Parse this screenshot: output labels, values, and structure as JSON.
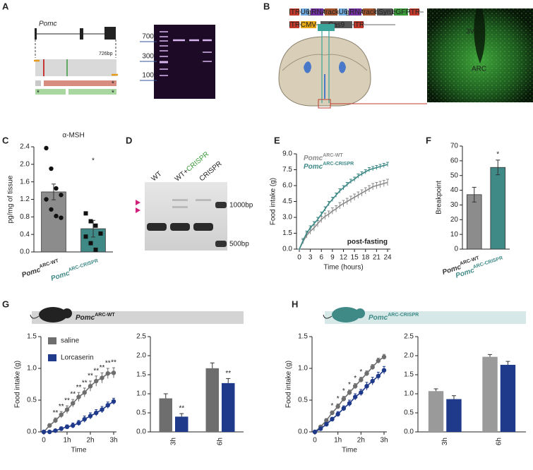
{
  "panel_A": {
    "label": "A",
    "gene": "Pomc",
    "amplicon": "726bp",
    "ladder": [
      "700",
      "300",
      "100"
    ],
    "asterisk": "*"
  },
  "panel_B": {
    "label": "B",
    "construct_1": [
      "ITR",
      "U6",
      "gRNA",
      "track",
      "U6",
      "gRNA",
      "track",
      "hSyn1",
      "eGFP",
      "ITR"
    ],
    "construct_2": [
      "ITR",
      "CMV",
      "Cas9",
      "ITR"
    ],
    "regions": [
      "3V",
      "ARC"
    ]
  },
  "panel_D": {
    "label": "D",
    "lanes": [
      [
        "WT"
      ],
      [
        "WT+",
        "CRISPR"
      ],
      [
        "CRISPR"
      ]
    ],
    "sizes": [
      "1000bp",
      "500bp"
    ]
  },
  "chart_data": [
    {
      "type": "bar",
      "panel": "C",
      "title": "α-MSH",
      "ylabel": "pg/mg of tissue",
      "categories": [
        "Pomc",
        "Pomc"
      ],
      "category_superscripts": [
        "ARC-WT",
        "ARC-CRISPR"
      ],
      "category_colors": [
        "#333333",
        "#3f8a87"
      ],
      "values": [
        1.37,
        0.53
      ],
      "errors": [
        0.18,
        0.19
      ],
      "colors": [
        "#8c8c8c",
        "#3f8a87"
      ],
      "points": [
        [
          2.37,
          1.9,
          1.45,
          1.3,
          1.2,
          0.97,
          0.82,
          0.78
        ],
        [
          0.88,
          0.7,
          0.6,
          0.42,
          0.35,
          0.2,
          0.05
        ]
      ],
      "point_markers": [
        "circle",
        "square"
      ],
      "annotation": "*",
      "annotation_color": "#3f8a87",
      "ylim": [
        0,
        2.4
      ],
      "yticks": [
        {
          "value": 0,
          "label": "0.0"
        },
        0.4,
        0.8,
        1.2,
        1.6,
        {
          "value": 2,
          "label": "2.0"
        },
        2.4
      ]
    },
    {
      "type": "line",
      "panel": "E",
      "xlabel": "Time (hours)",
      "ylabel": "Food intake (g)",
      "annotation": "post-fasting",
      "legend": "top-left",
      "x": [
        0,
        1,
        2,
        3,
        4,
        5,
        6,
        7,
        8,
        9,
        10,
        11,
        12,
        13,
        14,
        15,
        16,
        17,
        18,
        19,
        20,
        21,
        22,
        23,
        24
      ],
      "xlim": [
        0,
        24
      ],
      "xticks": [
        0,
        3,
        6,
        9,
        12,
        15,
        18,
        21,
        24
      ],
      "ylim": [
        0,
        9
      ],
      "yticks": [
        {
          "value": 0,
          "label": "0.0"
        },
        1.5,
        {
          "value": 3,
          "label": "3.0"
        },
        4.5,
        {
          "value": 6,
          "label": "6.0"
        },
        7.5,
        {
          "value": 9,
          "label": "9.0"
        }
      ],
      "series": [
        {
          "name": "Pomc",
          "name_superscript": "ARC-WT",
          "color": "#8c8c8c",
          "values": [
            0,
            0.7,
            1.3,
            1.7,
            2.0,
            2.4,
            2.8,
            3.1,
            3.3,
            3.6,
            3.8,
            4.1,
            4.3,
            4.5,
            4.7,
            4.9,
            5.1,
            5.3,
            5.5,
            5.7,
            5.9,
            6.0,
            6.1,
            6.2,
            6.3
          ],
          "errors": [
            0,
            0.2,
            0.25,
            0.3,
            0.3,
            0.3,
            0.3,
            0.3,
            0.3,
            0.3,
            0.3,
            0.3,
            0.3,
            0.3,
            0.3,
            0.3,
            0.3,
            0.3,
            0.3,
            0.3,
            0.3,
            0.3,
            0.3,
            0.3,
            0.3
          ]
        },
        {
          "name": "Pomc",
          "name_superscript": "ARC-CRISPR",
          "color": "#3f8a87",
          "values": [
            0,
            0.8,
            1.5,
            2.0,
            2.4,
            2.8,
            3.3,
            3.8,
            4.3,
            4.7,
            5.1,
            5.5,
            5.8,
            6.1,
            6.4,
            6.6,
            6.9,
            7.1,
            7.3,
            7.5,
            7.6,
            7.7,
            7.8,
            7.9,
            8.0
          ],
          "errors": [
            0,
            0.2,
            0.2,
            0.2,
            0.2,
            0.2,
            0.2,
            0.2,
            0.2,
            0.2,
            0.2,
            0.2,
            0.2,
            0.2,
            0.2,
            0.2,
            0.2,
            0.2,
            0.2,
            0.2,
            0.2,
            0.2,
            0.2,
            0.2,
            0.2
          ]
        }
      ]
    },
    {
      "type": "bar",
      "panel": "F",
      "ylabel": "Breakpoint",
      "categories": [
        "Pomc",
        "Pomc"
      ],
      "category_superscripts": [
        "ARC-WT",
        "ARC-CRISPR"
      ],
      "category_colors": [
        "#333333",
        "#3f8a87"
      ],
      "values": [
        37,
        55.5
      ],
      "errors": [
        5,
        5
      ],
      "colors": [
        "#8c8c8c",
        "#3f8a87"
      ],
      "annotation": "*",
      "annotation_color": "#333333",
      "ylim": [
        0,
        70
      ],
      "yticks": [
        0,
        10,
        20,
        30,
        40,
        50,
        60,
        70
      ]
    },
    {
      "type": "line",
      "panel": "G",
      "banner": "Pomc",
      "banner_superscript": "ARC-WT",
      "banner_color": "#d4d4d4",
      "banner_text_color": "#222222",
      "xlabel": "Time",
      "ylabel": "Food intake (g)",
      "legend": "top-left",
      "markers": true,
      "x": [
        0,
        0.25,
        0.5,
        0.75,
        1,
        1.25,
        1.5,
        1.75,
        2,
        2.25,
        2.5,
        2.75,
        3
      ],
      "xlim": [
        0,
        3
      ],
      "xticks": [
        0,
        {
          "value": 1,
          "label": "1h"
        },
        {
          "value": 2,
          "label": "2h"
        },
        {
          "value": 3,
          "label": "3h"
        }
      ],
      "ylim": [
        0,
        1.5
      ],
      "yticks": [
        {
          "value": 0,
          "label": "0.0"
        },
        0.5,
        {
          "value": 1,
          "label": "1.0"
        },
        1.5
      ],
      "sig_labels": [
        null,
        null,
        "**",
        "**",
        "**",
        "**",
        "**",
        "**",
        "**",
        "**",
        "**",
        "**",
        "**"
      ],
      "series": [
        {
          "name": "saline",
          "color": "#6e6e6e",
          "values": [
            0,
            0.1,
            0.18,
            0.27,
            0.35,
            0.45,
            0.55,
            0.62,
            0.72,
            0.8,
            0.85,
            0.92,
            0.93
          ],
          "errors": [
            0,
            0.03,
            0.04,
            0.05,
            0.06,
            0.06,
            0.07,
            0.07,
            0.08,
            0.08,
            0.08,
            0.08,
            0.08
          ]
        },
        {
          "name": "Lorcaserin",
          "color": "#1f3a8a",
          "values": [
            0,
            0,
            0.02,
            0.05,
            0.08,
            0.1,
            0.14,
            0.2,
            0.25,
            0.3,
            0.35,
            0.42,
            0.48
          ],
          "errors": [
            0,
            0.02,
            0.02,
            0.03,
            0.03,
            0.04,
            0.04,
            0.05,
            0.05,
            0.05,
            0.05,
            0.05,
            0.05
          ]
        }
      ]
    },
    {
      "type": "bar",
      "categories": [
        "3h",
        "6h"
      ],
      "ylim": [
        0,
        2.5
      ],
      "yticks": [
        {
          "value": 0,
          "label": "0.0"
        },
        0.5,
        {
          "value": 1,
          "label": "1.0"
        },
        1.5,
        {
          "value": 2,
          "label": "2.0"
        },
        2.5
      ],
      "series": [
        {
          "color": "#6e6e6e",
          "values": [
            0.88,
            1.67
          ],
          "errors": [
            0.12,
            0.14
          ]
        },
        {
          "color": "#1f3a8a",
          "values": [
            0.4,
            1.28
          ],
          "errors": [
            0.08,
            0.12
          ],
          "sig_labels": [
            "**",
            "**"
          ]
        }
      ]
    },
    {
      "type": "line",
      "panel": "H",
      "banner": "Pomc",
      "banner_superscript": "ARC-CRISPR",
      "banner_color": "#d6e8e8",
      "banner_text_color": "#3f8a87",
      "xlabel": "Time",
      "ylabel": "Food intake (g)",
      "markers": true,
      "x": [
        0,
        0.25,
        0.5,
        0.75,
        1,
        1.25,
        1.5,
        1.75,
        2,
        2.25,
        2.5,
        2.75,
        3
      ],
      "xlim": [
        0,
        3
      ],
      "xticks": [
        0,
        {
          "value": 1,
          "label": "1h"
        },
        {
          "value": 2,
          "label": "2h"
        },
        {
          "value": 3,
          "label": "3h"
        }
      ],
      "ylim": [
        0,
        1.5
      ],
      "yticks": [
        {
          "value": 0,
          "label": "0.0"
        },
        0.5,
        {
          "value": 1,
          "label": "1.0"
        },
        1.5
      ],
      "sig_labels": [
        null,
        null,
        null,
        "*",
        "*",
        "*",
        "*",
        "*",
        "*",
        null,
        null,
        null,
        null
      ],
      "series": [
        {
          "color": "#6e6e6e",
          "values": [
            0,
            0.08,
            0.18,
            0.3,
            0.4,
            0.52,
            0.62,
            0.72,
            0.82,
            0.92,
            1.02,
            1.12,
            1.18
          ],
          "errors": [
            0,
            0.02,
            0.03,
            0.03,
            0.04,
            0.04,
            0.04,
            0.04,
            0.04,
            0.04,
            0.04,
            0.04,
            0.04
          ]
        },
        {
          "color": "#1f3a8a",
          "values": [
            0,
            0.05,
            0.12,
            0.2,
            0.28,
            0.37,
            0.45,
            0.55,
            0.62,
            0.72,
            0.8,
            0.88,
            0.97
          ],
          "errors": [
            0,
            0.02,
            0.03,
            0.03,
            0.04,
            0.04,
            0.05,
            0.05,
            0.05,
            0.06,
            0.06,
            0.06,
            0.06
          ]
        }
      ]
    },
    {
      "type": "bar",
      "categories": [
        "3h",
        "6h"
      ],
      "ylim": [
        0,
        2.5
      ],
      "yticks": [
        {
          "value": 0,
          "label": "0.0"
        },
        0.5,
        {
          "value": 1,
          "label": "1.0"
        },
        1.5,
        {
          "value": 2,
          "label": "2.0"
        },
        2.5
      ],
      "series": [
        {
          "color": "#9a9a9a",
          "values": [
            1.07,
            1.97
          ],
          "errors": [
            0.06,
            0.06
          ]
        },
        {
          "color": "#1f3a8a",
          "values": [
            0.86,
            1.76
          ],
          "errors": [
            0.09,
            0.09
          ]
        }
      ]
    }
  ]
}
